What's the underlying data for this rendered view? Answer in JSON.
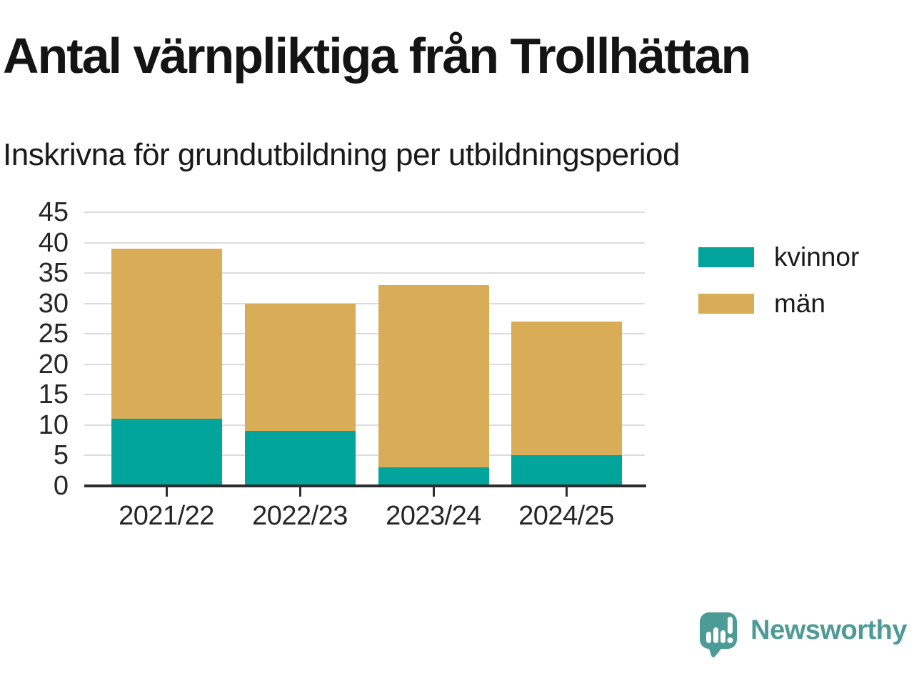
{
  "header": {
    "title": "Antal värnpliktiga från Trollhättan",
    "subtitle": "Inskrivna för grundutbildning per utbildningsperiod"
  },
  "chart_data": {
    "type": "bar",
    "stacked": true,
    "title": "Antal värnpliktiga från Trollhättan",
    "subtitle": "Inskrivna för grundutbildning per utbildningsperiod",
    "categories": [
      "2021/22",
      "2022/23",
      "2023/24",
      "2024/25"
    ],
    "series": [
      {
        "name": "kvinnor",
        "color": "#00a49a",
        "values": [
          11,
          9,
          3,
          5
        ]
      },
      {
        "name": "män",
        "color": "#d9ac57",
        "values": [
          28,
          21,
          30,
          22
        ]
      }
    ],
    "totals": [
      39,
      30,
      33,
      27
    ],
    "xlabel": "",
    "ylabel": "",
    "ylim": [
      0,
      45
    ],
    "yticks": [
      0,
      5,
      10,
      15,
      20,
      25,
      30,
      35,
      40,
      45
    ],
    "grid": true,
    "gridline_color": "#dcdcdc",
    "axis_color": "#2d2d2d",
    "legend_position": "right"
  },
  "legend": {
    "items": [
      {
        "label": "kvinnor",
        "color": "#00a49a"
      },
      {
        "label": "män",
        "color": "#d9ac57"
      }
    ]
  },
  "footer": {
    "brand": "Newsworthy",
    "brand_color": "#4d9b96"
  }
}
